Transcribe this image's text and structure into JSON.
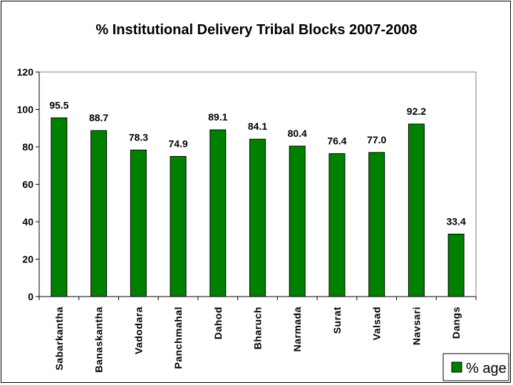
{
  "chart_data": {
    "type": "bar",
    "title": "% Institutional Delivery Tribal Blocks 2007-2008",
    "categories": [
      "Sabarkantha",
      "Banaskantha",
      "Vadodara",
      "Panchmahal",
      "Dahod",
      "Bharuch",
      "Narmada",
      "Surat",
      "Valsad",
      "Navsari",
      "Dangs"
    ],
    "series": [
      {
        "name": "% age",
        "values": [
          95.5,
          88.7,
          78.3,
          74.9,
          89.1,
          84.1,
          80.4,
          76.4,
          77.0,
          92.2,
          33.4
        ]
      }
    ],
    "data_labels": [
      "95.5",
      "88.7",
      "78.3",
      "74.9",
      "89.1",
      "84.1",
      "80.4",
      "76.4",
      "77.0",
      "92.2",
      "33.4"
    ],
    "ylim": [
      0,
      120
    ],
    "yticks": [
      "0",
      "20",
      "40",
      "60",
      "80",
      "100",
      "120"
    ],
    "xlabel": "",
    "ylabel": "",
    "grid": false,
    "legend_position": "bottom-right",
    "colors": {
      "bar_fill": "#008000",
      "bar_stroke": "#000000",
      "plot_border": "#808080"
    }
  }
}
